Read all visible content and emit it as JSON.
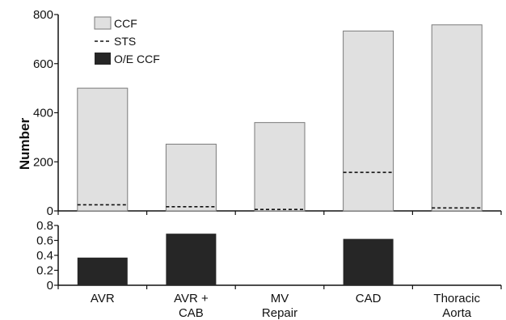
{
  "chart_data": [
    {
      "type": "bar",
      "ylabel": "Number",
      "ylim": [
        0,
        800
      ],
      "yticks": [
        0,
        200,
        400,
        600,
        800
      ],
      "categories": [
        "AVR",
        "AVR + CAB",
        "MV Repair",
        "CAD",
        "Thoracic Aorta"
      ],
      "series": [
        {
          "name": "CCF",
          "kind": "bar",
          "color": "#e0e0e0",
          "values": [
            500,
            272,
            360,
            733,
            758
          ]
        },
        {
          "name": "STS",
          "kind": "dashed-line",
          "color": "#111111",
          "values": [
            25,
            17,
            6,
            157,
            12
          ]
        }
      ],
      "legend": "top-left"
    },
    {
      "type": "bar",
      "ylim": [
        0,
        0.8
      ],
      "yticks": [
        0,
        0.2,
        0.4,
        0.6,
        0.8
      ],
      "categories": [
        "AVR",
        "AVR + CAB",
        "MV Repair",
        "CAD",
        "Thoracic Aorta"
      ],
      "series": [
        {
          "name": "O/E CCF",
          "kind": "bar",
          "color": "#262626",
          "values": [
            0.37,
            0.69,
            null,
            0.62,
            null
          ]
        }
      ]
    }
  ],
  "x_tick_lines": [
    [
      "AVR"
    ],
    [
      "AVR +",
      "CAB"
    ],
    [
      "MV",
      "Repair"
    ],
    [
      "CAD"
    ],
    [
      "Thoracic",
      "Aorta"
    ]
  ],
  "top_yticklabels": [
    "0",
    "200",
    "400",
    "600",
    "800"
  ],
  "bottom_yticklabels": [
    "0",
    "0.2",
    "0.4",
    "0.6",
    "0.8"
  ],
  "legend": {
    "items": [
      {
        "label": "CCF",
        "swatch": "box",
        "color": "#e0e0e0"
      },
      {
        "label": "STS",
        "swatch": "dash",
        "color": "#111111"
      },
      {
        "label": "O/E CCF",
        "swatch": "box",
        "color": "#262626"
      }
    ]
  }
}
